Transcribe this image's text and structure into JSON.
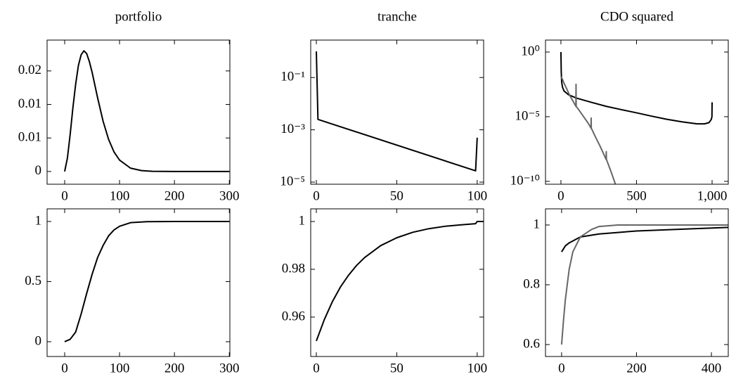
{
  "chart_data": [
    {
      "type": "line",
      "title": "portfolio",
      "x": [
        0,
        5,
        10,
        15,
        20,
        25,
        30,
        35,
        40,
        45,
        50,
        60,
        70,
        80,
        90,
        100,
        120,
        140,
        160,
        200,
        250,
        300
      ],
      "series": [
        {
          "color": "#000000",
          "values": [
            0,
            0.002,
            0.0055,
            0.0095,
            0.013,
            0.0158,
            0.0174,
            0.018,
            0.0176,
            0.0164,
            0.0148,
            0.011,
            0.0075,
            0.0048,
            0.0029,
            0.0017,
            0.0005,
            0.00013,
            3e-05,
            0,
            0,
            0
          ]
        }
      ],
      "xlim": [
        -32,
        301
      ],
      "ylim": [
        -0.0019,
        0.0196
      ],
      "xticks": [
        100,
        200,
        300,
        0
      ],
      "yticks": [
        0,
        {
          "value": 0.005,
          "label": "0.01"
        },
        {
          "value": 0.01,
          "label": "0.01"
        },
        {
          "value": 0.015,
          "label": "0.02"
        }
      ]
    },
    {
      "type": "line",
      "title": "tranche",
      "x": [
        0,
        1,
        99,
        100
      ],
      "series": [
        {
          "color": "#000000",
          "values": [
            1,
            0.0025,
            2.7e-05,
            0.0005
          ]
        }
      ],
      "xlim": [
        -3.5,
        104
      ],
      "ylim": [
        8.3e-06,
        2.7
      ],
      "ylog": true,
      "xticks": [
        0,
        50,
        100
      ],
      "yticks": [
        {
          "value": 0.1,
          "label": "10⁻¹"
        },
        {
          "value": 0.001,
          "label": "10⁻³"
        },
        {
          "value": 1e-05,
          "label": "10⁻⁵"
        }
      ]
    },
    {
      "type": "line",
      "title": "CDO squared",
      "series": [
        {
          "color": "#000000",
          "x": [
            0,
            2,
            5,
            10,
            20,
            50,
            100,
            200,
            300,
            400,
            500,
            600,
            700,
            800,
            900,
            950,
            980,
            995,
            999,
            1000
          ],
          "values": [
            1,
            0.032,
            0.005,
            0.002,
            0.001,
            0.0005,
            0.00028,
            0.00013,
            6.3e-05,
            3.5e-05,
            2e-05,
            1.1e-05,
            6.3e-06,
            4e-06,
            2.8e-06,
            2.8e-06,
            3.5e-06,
            6.3e-06,
            1e-05,
            0.00013
          ]
        },
        {
          "color": "#666666",
          "x": [
            0,
            10,
            20,
            40,
            60,
            80,
            99,
            100,
            101,
            120,
            150,
            180,
            199,
            200,
            201,
            230,
            260,
            299,
            300,
            301,
            330,
            360,
            400
          ],
          "values": [
            0.0126,
            0.0079,
            0.004,
            0.0013,
            0.0004,
            0.00016,
            6.3e-05,
            0.0032,
            6.3e-05,
            3.2e-05,
            1e-05,
            3.2e-06,
            1.3e-06,
            7.9e-06,
            1.3e-06,
            2.5e-07,
            5e-08,
            5e-09,
            2e-08,
            5e-09,
            6.3e-10,
            6.3e-11,
            3.2e-12
          ]
        }
      ],
      "xlim": [
        -102,
        1107
      ],
      "ylim": [
        6e-11,
        8.4
      ],
      "ylog": true,
      "xticks": [
        0,
        500,
        {
          "value": 1000,
          "label": "1,000"
        }
      ],
      "yticks": [
        {
          "value": 1,
          "label": "10⁰"
        },
        {
          "value": 1e-05,
          "label": "10⁻⁵"
        },
        {
          "value": 1e-10,
          "label": "10⁻¹⁰"
        }
      ]
    },
    {
      "type": "line",
      "x": [
        0,
        10,
        20,
        30,
        40,
        50,
        60,
        70,
        80,
        90,
        100,
        120,
        150,
        200,
        300
      ],
      "series": [
        {
          "color": "#000000",
          "values": [
            0,
            0.02,
            0.08,
            0.23,
            0.4,
            0.56,
            0.7,
            0.8,
            0.88,
            0.93,
            0.96,
            0.99,
            0.998,
            1,
            1
          ]
        }
      ],
      "xlim": [
        -32,
        301
      ],
      "ylim": [
        -0.123,
        1.105
      ],
      "xticks": [
        0,
        100,
        200,
        300
      ],
      "yticks": [
        0,
        0.5,
        1
      ]
    },
    {
      "type": "line",
      "x": [
        0,
        5,
        10,
        15,
        20,
        25,
        30,
        40,
        50,
        60,
        70,
        80,
        90,
        99,
        100,
        110
      ],
      "series": [
        {
          "color": "#000000",
          "values": [
            0.95,
            0.959,
            0.9665,
            0.9726,
            0.9775,
            0.9816,
            0.9849,
            0.9899,
            0.9932,
            0.9955,
            0.997,
            0.998,
            0.9986,
            0.9991,
            1,
            1
          ]
        }
      ],
      "xlim": [
        -3.5,
        104
      ],
      "ylim": [
        0.9435,
        1.0053
      ],
      "xticks": [
        0,
        50,
        100
      ],
      "yticks": [
        0.96,
        0.98,
        1
      ]
    },
    {
      "type": "line",
      "series": [
        {
          "color": "#000000",
          "x": [
            0,
            10,
            20,
            50,
            100,
            200,
            300,
            445
          ],
          "values": [
            0.91,
            0.93,
            0.94,
            0.96,
            0.97,
            0.98,
            0.985,
            0.992
          ]
        },
        {
          "color": "#666666",
          "x": [
            0,
            5,
            10,
            20,
            30,
            50,
            80,
            100,
            150,
            445
          ],
          "values": [
            0.6,
            0.68,
            0.75,
            0.85,
            0.91,
            0.96,
            0.985,
            0.995,
            1,
            1
          ]
        }
      ],
      "xlim": [
        -43,
        445
      ],
      "ylim": [
        0.56,
        1.054
      ],
      "xticks": [
        0,
        200,
        400
      ],
      "yticks": [
        0.6,
        0.8,
        1
      ]
    }
  ]
}
